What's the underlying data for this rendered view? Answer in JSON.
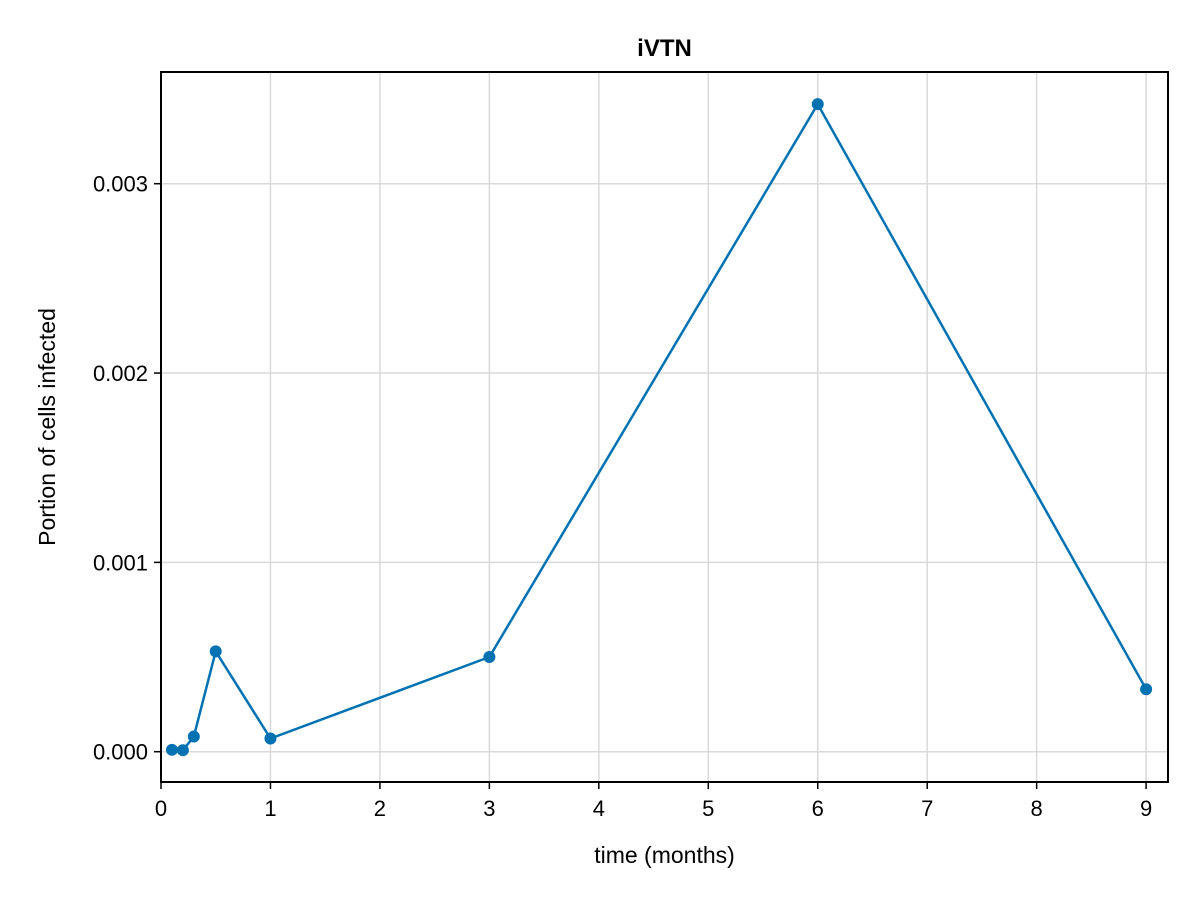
{
  "chart_data": {
    "type": "line",
    "title": "iVTN",
    "xlabel": "time (months)",
    "ylabel": "Portion of cells infected",
    "xlim": [
      0,
      9.2
    ],
    "ylim": [
      -0.00016,
      0.00359
    ],
    "xticks": [
      0,
      1,
      2,
      3,
      4,
      5,
      6,
      7,
      8,
      9
    ],
    "xtick_labels": [
      "0",
      "1",
      "2",
      "3",
      "4",
      "5",
      "6",
      "7",
      "8",
      "9"
    ],
    "yticks": [
      0.0,
      0.001,
      0.002,
      0.003
    ],
    "ytick_labels": [
      "0.000",
      "0.001",
      "0.002",
      "0.003"
    ],
    "grid": true,
    "series": [
      {
        "x": [
          0.1,
          0.2,
          0.3,
          0.5,
          1,
          3,
          6,
          9
        ],
        "y": [
          1e-05,
          8e-06,
          8e-05,
          0.00053,
          7e-05,
          0.0005,
          0.00342,
          0.00033
        ],
        "color": "#0072b2",
        "markers": true
      }
    ]
  }
}
